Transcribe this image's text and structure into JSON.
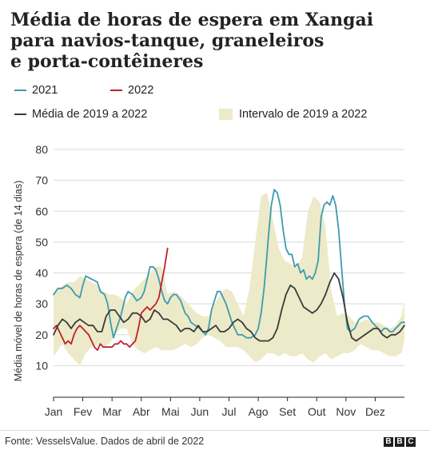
{
  "title_lines": [
    "Média de horas de espera em Xangai",
    "para navios-tanque, graneleiros",
    "e porta-contêineres"
  ],
  "legend": [
    {
      "label": "2021",
      "color": "#3d9bb0",
      "kind": "line"
    },
    {
      "label": "2022",
      "color": "#c0202b",
      "kind": "line"
    },
    {
      "label": "Média de 2019 a 2022",
      "color": "#3a3a3a",
      "kind": "line"
    },
    {
      "label": "Intervalo de 2019 a 2022",
      "color": "#eceac8",
      "kind": "area"
    }
  ],
  "source": "Fonte: VesselsValue. Dados de abril de 2022",
  "brand_letters": [
    "B",
    "B",
    "C"
  ],
  "chart_data": {
    "type": "line",
    "ylabel": "Média móvel de horas de espera (de 14 dias)",
    "xlabel": "",
    "ylim": [
      0,
      80
    ],
    "yticks": [
      10,
      20,
      30,
      40,
      50,
      60,
      70,
      80
    ],
    "grid": "horizontal",
    "months": [
      "Jan",
      "Fev",
      "Mar",
      "Abr",
      "Mai",
      "Jun",
      "Jul",
      "Ago",
      "Set",
      "Out",
      "Nov",
      "Dez"
    ],
    "x_unit": "month",
    "band": {
      "name": "Intervalo de 2019 a 2022",
      "color": "#eceac8",
      "x": [
        0,
        0.3,
        0.5,
        0.7,
        0.9,
        1.1,
        1.3,
        1.5,
        1.7,
        1.9,
        2.1,
        2.3,
        2.5,
        2.7,
        2.9,
        3.1,
        3.3,
        3.5,
        3.7,
        3.9,
        4.1,
        4.3,
        4.5,
        4.7,
        4.9,
        5.1,
        5.3,
        5.5,
        5.7,
        5.9,
        6.1,
        6.3,
        6.5,
        6.7,
        6.9,
        7.1,
        7.3,
        7.5,
        7.7,
        7.9,
        8.1,
        8.3,
        8.5,
        8.7,
        8.9,
        9.1,
        9.3,
        9.5,
        9.7,
        9.9,
        10.1,
        10.3,
        10.5,
        10.7,
        10.9,
        11.1,
        11.3,
        11.5,
        11.7,
        11.9,
        12
      ],
      "lower": [
        13,
        17,
        14,
        12,
        10,
        14,
        16,
        17,
        16,
        17,
        20,
        22,
        22,
        17,
        15,
        14,
        15,
        16,
        15,
        15,
        15,
        16,
        17,
        16,
        17,
        19,
        20,
        19,
        18,
        16,
        16,
        16,
        15,
        13,
        11,
        12,
        14,
        14,
        13,
        14,
        13,
        13,
        14,
        12,
        11,
        13,
        14,
        12,
        13,
        14,
        14,
        15,
        17,
        16,
        15,
        15,
        14,
        13,
        13,
        14,
        18
      ],
      "upper": [
        33,
        36,
        37,
        37,
        39,
        38,
        37,
        36,
        34,
        33,
        33,
        32,
        30,
        34,
        36,
        38,
        40,
        42,
        42,
        33,
        34,
        33,
        31,
        29,
        27,
        26,
        26,
        30,
        33,
        35,
        34,
        30,
        26,
        35,
        50,
        65,
        66,
        57,
        48,
        44,
        43,
        42,
        45,
        60,
        65,
        63,
        55,
        34,
        26,
        27,
        26,
        24,
        24,
        25,
        24,
        24,
        23,
        22,
        23,
        26,
        31
      ]
    },
    "series": [
      {
        "name": "2021",
        "color": "#3d9bb0",
        "x": [
          0,
          0.15,
          0.3,
          0.45,
          0.6,
          0.75,
          0.9,
          1.0,
          1.1,
          1.3,
          1.5,
          1.6,
          1.75,
          1.85,
          1.95,
          2.05,
          2.15,
          2.3,
          2.45,
          2.55,
          2.7,
          2.85,
          3.0,
          3.1,
          3.2,
          3.3,
          3.4,
          3.5,
          3.6,
          3.7,
          3.8,
          3.9,
          4.0,
          4.1,
          4.2,
          4.35,
          4.5,
          4.6,
          4.7,
          4.85,
          5.0,
          5.1,
          5.2,
          5.3,
          5.4,
          5.5,
          5.6,
          5.7,
          5.8,
          5.9,
          6.0,
          6.1,
          6.2,
          6.3,
          6.45,
          6.6,
          6.75,
          6.9,
          7.0,
          7.1,
          7.2,
          7.3,
          7.35,
          7.45,
          7.55,
          7.65,
          7.75,
          7.85,
          7.95,
          8.05,
          8.15,
          8.25,
          8.35,
          8.45,
          8.55,
          8.65,
          8.75,
          8.85,
          8.95,
          9.05,
          9.15,
          9.25,
          9.35,
          9.45,
          9.55,
          9.65,
          9.75,
          9.85,
          9.95,
          10.05,
          10.15,
          10.3,
          10.45,
          10.6,
          10.75,
          10.9,
          11.0,
          11.1,
          11.2,
          11.3,
          11.4,
          11.5,
          11.6,
          11.7,
          11.8,
          11.9,
          12.0
        ],
        "y": [
          33,
          35,
          35,
          36,
          35,
          33,
          32,
          36,
          39,
          38,
          37,
          34,
          33,
          30,
          24,
          19,
          22,
          26,
          32,
          34,
          33,
          31,
          32,
          34,
          38,
          42,
          42,
          41,
          38,
          34,
          31,
          30,
          32,
          33,
          33,
          31,
          27,
          26,
          24,
          23,
          22,
          21,
          20,
          22,
          28,
          31,
          34,
          34,
          32,
          30,
          27,
          24,
          22,
          20,
          20,
          19,
          19,
          20,
          22,
          27,
          35,
          46,
          52,
          62,
          67,
          66,
          62,
          54,
          48,
          46,
          46,
          42,
          43,
          40,
          41,
          38,
          39,
          38,
          40,
          44,
          58,
          62,
          63,
          62,
          65,
          62,
          54,
          42,
          30,
          22,
          21,
          22,
          25,
          26,
          26,
          24,
          23,
          22,
          21,
          22,
          22,
          21,
          21,
          22,
          23,
          24,
          24
        ]
      },
      {
        "name": "2022",
        "color": "#c0202b",
        "x": [
          0,
          0.1,
          0.2,
          0.3,
          0.4,
          0.5,
          0.6,
          0.7,
          0.8,
          0.9,
          1.0,
          1.1,
          1.2,
          1.3,
          1.4,
          1.5,
          1.6,
          1.7,
          1.8,
          1.9,
          2.0,
          2.1,
          2.2,
          2.3,
          2.4,
          2.5,
          2.6,
          2.7,
          2.8,
          2.9,
          3.0,
          3.1,
          3.2,
          3.3,
          3.4,
          3.5,
          3.6,
          3.7,
          3.8,
          3.9
        ],
        "y": [
          22,
          23,
          21,
          19,
          17,
          18,
          17,
          20,
          22,
          23,
          22,
          21,
          20,
          18,
          16,
          15,
          17,
          16,
          16,
          16,
          16,
          17,
          17,
          18,
          17,
          17,
          16,
          17,
          18,
          22,
          27,
          28,
          29,
          28,
          29,
          30,
          32,
          37,
          42,
          48
        ]
      },
      {
        "name": "Média de 2019 a 2022",
        "color": "#3a3a3a",
        "x": [
          0,
          0.15,
          0.3,
          0.45,
          0.6,
          0.75,
          0.9,
          1.05,
          1.2,
          1.35,
          1.5,
          1.65,
          1.8,
          1.95,
          2.1,
          2.25,
          2.4,
          2.55,
          2.7,
          2.85,
          3.0,
          3.15,
          3.3,
          3.45,
          3.6,
          3.75,
          3.9,
          4.05,
          4.2,
          4.35,
          4.5,
          4.65,
          4.8,
          4.95,
          5.1,
          5.25,
          5.4,
          5.55,
          5.7,
          5.85,
          6.0,
          6.15,
          6.3,
          6.45,
          6.6,
          6.75,
          6.9,
          7.05,
          7.2,
          7.35,
          7.5,
          7.65,
          7.8,
          7.95,
          8.1,
          8.25,
          8.4,
          8.55,
          8.7,
          8.85,
          9.0,
          9.15,
          9.3,
          9.45,
          9.6,
          9.75,
          9.9,
          10.05,
          10.2,
          10.35,
          10.5,
          10.65,
          10.8,
          10.95,
          11.1,
          11.25,
          11.4,
          11.55,
          11.7,
          11.85,
          12.0
        ],
        "y": [
          20,
          23,
          25,
          24,
          22,
          24,
          25,
          24,
          23,
          23,
          21,
          21,
          26,
          28,
          28,
          26,
          24,
          25,
          27,
          27,
          26,
          24,
          25,
          28,
          27,
          25,
          25,
          24,
          23,
          21,
          22,
          22,
          21,
          23,
          21,
          21,
          22,
          23,
          21,
          21,
          22,
          24,
          25,
          24,
          22,
          21,
          19,
          18,
          18,
          18,
          19,
          22,
          28,
          33,
          36,
          35,
          32,
          29,
          28,
          27,
          28,
          30,
          33,
          37,
          40,
          38,
          32,
          24,
          19,
          18,
          19,
          20,
          21,
          22,
          22,
          20,
          19,
          20,
          20,
          21,
          23
        ]
      }
    ]
  }
}
